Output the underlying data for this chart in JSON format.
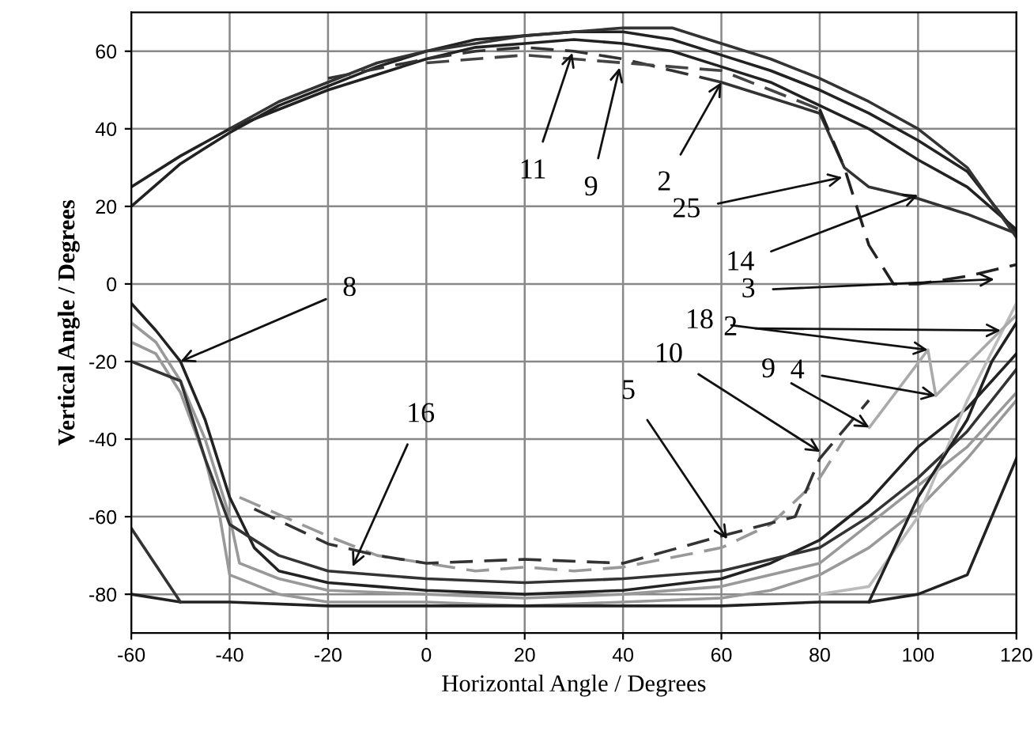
{
  "chart_data": {
    "type": "line",
    "xlabel": "Horizontal Angle / Degrees",
    "ylabel": "Vertical Angle / Degrees",
    "xlim": [
      -60,
      120
    ],
    "ylim": [
      -90,
      70
    ],
    "xticks": [
      -60,
      -40,
      -20,
      0,
      20,
      40,
      60,
      80,
      100,
      120
    ],
    "yticks": [
      -80,
      -60,
      -40,
      -20,
      0,
      20,
      40,
      60
    ],
    "grid": true,
    "line_style": "solid",
    "marker": "none",
    "series": [
      {
        "color": "#222222",
        "x": [
          -60,
          -50,
          -40,
          -30,
          -20,
          -10,
          0,
          10,
          20,
          30,
          40,
          50,
          60,
          70,
          80,
          90,
          100,
          110,
          120
        ],
        "values": [
          20,
          31,
          39,
          46,
          51,
          56,
          60,
          63,
          64,
          65,
          65,
          63,
          59,
          55,
          50,
          44,
          37,
          29,
          13
        ]
      },
      {
        "color": "#222222",
        "x": [
          -60,
          -50,
          -40,
          -30,
          -20,
          -10,
          0,
          10,
          20,
          30,
          40,
          50,
          60,
          70,
          80,
          90,
          100,
          110,
          120
        ],
        "values": [
          25,
          33,
          40,
          45,
          50,
          54,
          58,
          61,
          62,
          63,
          62,
          60,
          56,
          52,
          46,
          40,
          32,
          25,
          14
        ]
      },
      {
        "color": "#333333",
        "x": [
          -40,
          -30,
          -20,
          -10,
          0,
          10,
          20,
          30,
          40,
          50,
          60,
          70,
          80,
          90,
          100,
          110,
          120
        ],
        "values": [
          40,
          47,
          52,
          57,
          60,
          62,
          64,
          65,
          66,
          66,
          62,
          58,
          53,
          47,
          40,
          30,
          12
        ]
      },
      {
        "color": "#333333",
        "line_style": "dashed",
        "x": [
          -20,
          0,
          10,
          20,
          30,
          40,
          50,
          60
        ],
        "values": [
          53,
          58,
          60,
          61,
          60,
          58,
          55,
          52
        ]
      },
      {
        "color": "#444444",
        "line_style": "dashed",
        "x": [
          0,
          20,
          30,
          40,
          50,
          60,
          70,
          80
        ],
        "values": [
          57,
          59,
          58,
          57,
          56,
          55,
          50,
          45
        ]
      },
      {
        "color": "#333333",
        "x": [
          60,
          70,
          80,
          85,
          90,
          100,
          110,
          120
        ],
        "values": [
          52,
          48,
          44,
          30,
          25,
          22,
          18,
          13
        ]
      },
      {
        "color": "#222222",
        "line_style": "dashed",
        "x": [
          80,
          85,
          90,
          95,
          100,
          110,
          120
        ],
        "values": [
          45,
          30,
          10,
          0,
          0,
          2,
          5
        ]
      },
      {
        "color": "#222222",
        "x": [
          -60,
          -55,
          -50,
          -45,
          -40,
          -35,
          -30,
          -20,
          -10,
          0,
          20,
          40,
          60,
          70,
          80,
          90,
          100,
          110,
          120
        ],
        "values": [
          -5,
          -12,
          -20,
          -35,
          -55,
          -68,
          -74,
          -77,
          -78,
          -79,
          -80,
          -79,
          -76,
          -72,
          -66,
          -56,
          -42,
          -32,
          -18
        ]
      },
      {
        "color": "#999999",
        "x": [
          -60,
          -55,
          -50,
          -45,
          -40,
          -38,
          -30,
          -20,
          0,
          20,
          40,
          60,
          80,
          90,
          100,
          110,
          120
        ],
        "values": [
          -10,
          -15,
          -25,
          -40,
          -60,
          -72,
          -76,
          -79,
          -80,
          -81,
          -80,
          -78,
          -72,
          -62,
          -52,
          -42,
          -28
        ]
      },
      {
        "color": "#999999",
        "x": [
          -60,
          -55,
          -50,
          -45,
          -42,
          -40,
          -30,
          -20,
          0,
          20,
          40,
          60,
          70,
          80,
          90,
          100,
          110,
          120
        ],
        "values": [
          -15,
          -18,
          -28,
          -45,
          -60,
          -75,
          -80,
          -82,
          -82,
          -83,
          -82,
          -81,
          -79,
          -75,
          -68,
          -58,
          -45,
          -30
        ]
      },
      {
        "color": "#333333",
        "x": [
          -60,
          -50,
          -45,
          -40,
          -30,
          -20,
          0,
          20,
          40,
          60,
          80,
          90,
          100,
          110,
          120
        ],
        "values": [
          -20,
          -25,
          -45,
          -62,
          -70,
          -74,
          -76,
          -77,
          -76,
          -74,
          -68,
          -60,
          -50,
          -38,
          -22
        ]
      },
      {
        "color": "#999999",
        "line_style": "dashed",
        "x": [
          -38,
          -20,
          -10,
          0,
          10,
          20,
          30,
          40,
          60,
          70,
          80,
          85
        ],
        "values": [
          -55,
          -65,
          -70,
          -72,
          -74,
          -73,
          -74,
          -73,
          -68,
          -62,
          -50,
          -40
        ]
      },
      {
        "color": "#333333",
        "line_style": "dashed",
        "x": [
          -35,
          -20,
          -10,
          0,
          20,
          40,
          60,
          75,
          80,
          90
        ],
        "values": [
          -58,
          -67,
          -70,
          -72,
          -71,
          -72,
          -65,
          -60,
          -45,
          -30
        ]
      },
      {
        "color": "#222222",
        "x": [
          -60,
          -50,
          -40,
          -20,
          0,
          20,
          40,
          60,
          80,
          90,
          100,
          110,
          120
        ],
        "values": [
          -80,
          -82,
          -82,
          -83,
          -83,
          -83,
          -83,
          -83,
          -82,
          -82,
          -80,
          -75,
          -45
        ]
      },
      {
        "color": "#333333",
        "x": [
          -60,
          -50
        ],
        "values": [
          -63,
          -82
        ]
      },
      {
        "color": "#bbbbbb",
        "x": [
          80,
          90,
          100,
          110,
          120
        ],
        "values": [
          -80,
          -78,
          -60,
          -30,
          -5
        ]
      },
      {
        "color": "#222222",
        "x": [
          90,
          100,
          110,
          115,
          120
        ],
        "values": [
          -82,
          -55,
          -35,
          -20,
          -10
        ]
      },
      {
        "color": "#aaaaaa",
        "x": [
          90.1,
          102,
          103.6,
          116.8,
          120
        ],
        "values": [
          -37,
          -17,
          -28.8,
          -12,
          -8
        ]
      }
    ],
    "annotations": [
      {
        "text": "11",
        "x": 29.7,
        "y": 59.6
      },
      {
        "text": "9",
        "x": 39.3,
        "y": 55.8
      },
      {
        "text": "2",
        "x": 60,
        "y": 52
      },
      {
        "text": "25",
        "x": 84.6,
        "y": 27.5
      },
      {
        "text": "14",
        "x": 100,
        "y": 22.9
      },
      {
        "text": "3",
        "x": 115.5,
        "y": 1.2
      },
      {
        "text": "18",
        "x": 102,
        "y": -17
      },
      {
        "text": "2",
        "x": 116.8,
        "y": -12
      },
      {
        "text": "4",
        "x": 103.6,
        "y": -28.8
      },
      {
        "text": "10",
        "x": 80.1,
        "y": -43.3
      },
      {
        "text": "9",
        "x": 90.1,
        "y": -37
      },
      {
        "text": "5",
        "x": 61.2,
        "y": -65.8
      },
      {
        "text": "16",
        "x": -15,
        "y": -72.9
      },
      {
        "text": "8",
        "x": -50,
        "y": -20
      }
    ]
  }
}
